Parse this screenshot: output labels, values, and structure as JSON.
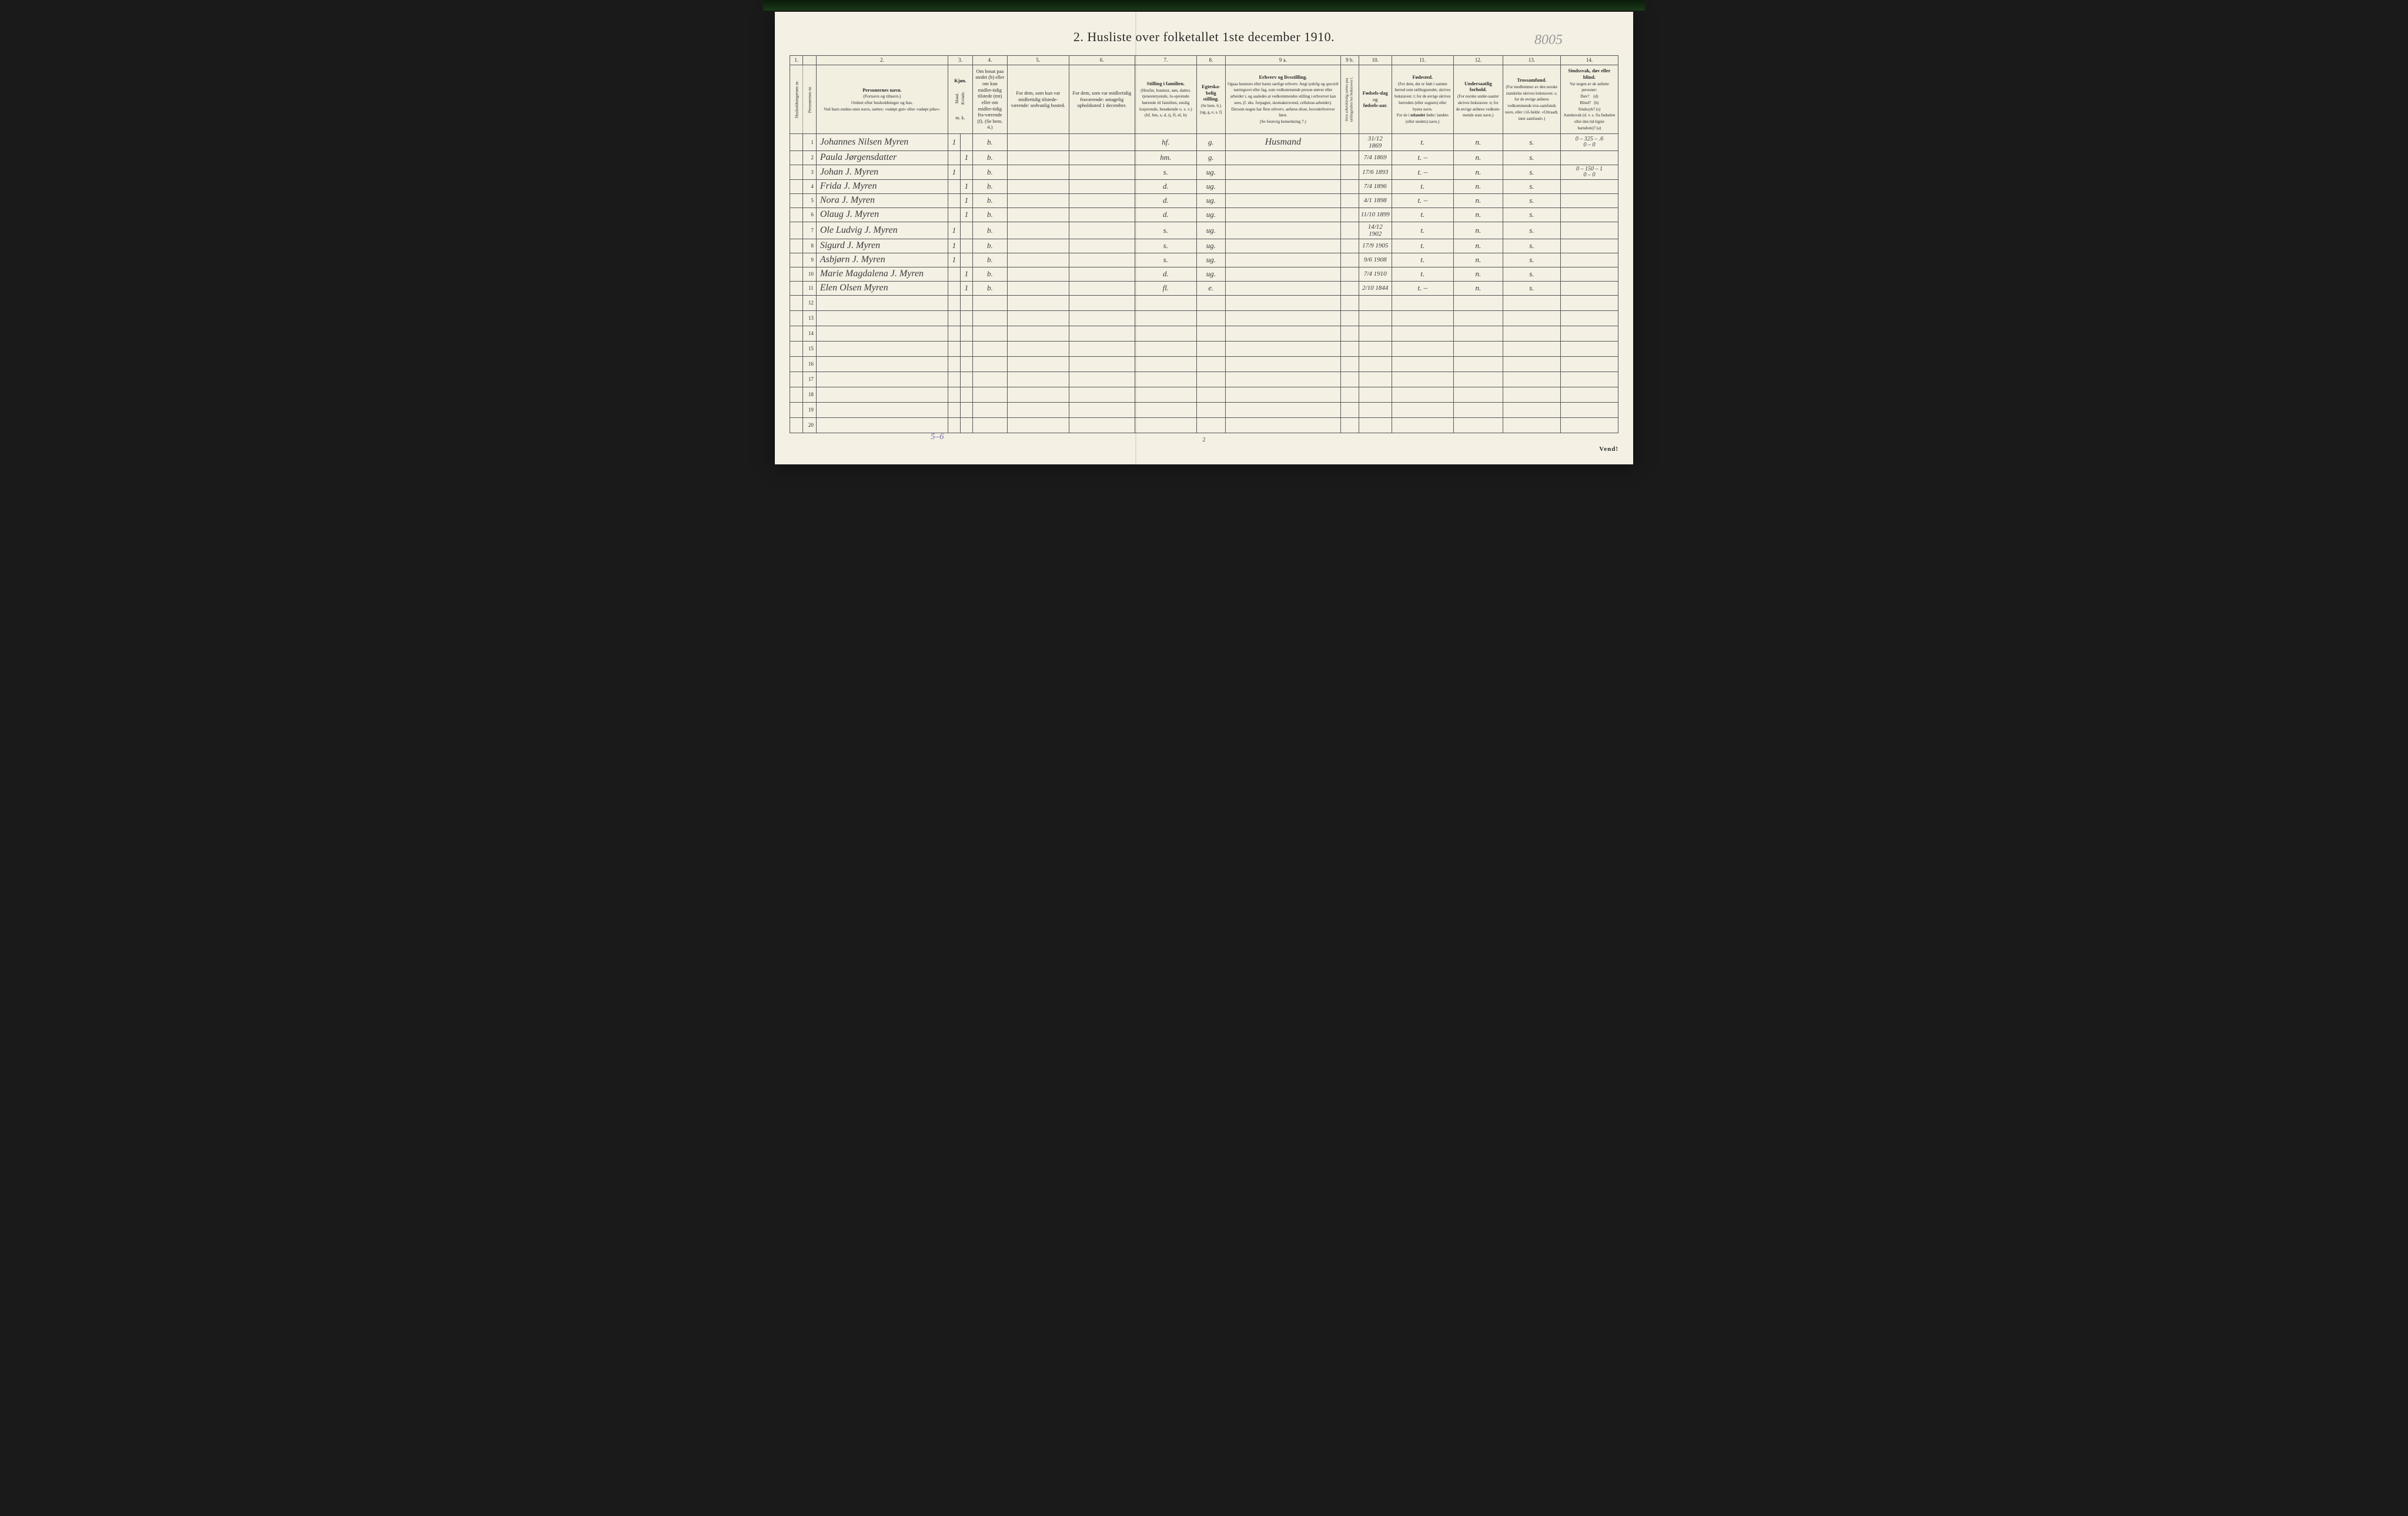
{
  "title": "2.  Husliste over folketallet 1ste december 1910.",
  "pencil_top_right": "8005",
  "footer_page_num": "2",
  "vend_text": "Vend!",
  "pencil_tally": "5–6",
  "colnums": [
    "1.",
    "",
    "2.",
    "3.",
    "",
    "4.",
    "5.",
    "6.",
    "7.",
    "8.",
    "9 a.",
    "9 b.",
    "10.",
    "11.",
    "12.",
    "13.",
    "14."
  ],
  "headers": {
    "c1": "Husholdningernes nr.",
    "c1b": "Personernes nr.",
    "c2": "Personernes navn.\n(Fornavn og tilnavn.)\nOrdnet efter husholdninger og hus.\nVed barn endnu uten navn, sættes: «udøpt gut» eller «udøpt pike».",
    "c3": "Kjøn.",
    "c3m": "Mand.",
    "c3k": "Kvinde.",
    "c3sub": "m.  k.",
    "c4": "Om bosat paa stedet (b) eller om kun midler-tidig tilstede (mt) eller om midler-tidig fra-værende (f).\n(Se bem. 4.)",
    "c5": "For dem, som kun var midlertidig tilstede-værende:\nsedvanlig bosted.",
    "c6": "For dem, som var midlertidig fraværende:\nantagelig opholdssted 1 december.",
    "c7": "Stilling i familien.\n(Husfar, husmor, søn, datter, tjenestetyende, lo-sjerende hørende til familien, enslig losjerende, besøkende o. s. v.)\n(hf, hm, s, d, tj, fl, el, b)",
    "c8": "Egteska-belig stilling.\n(Se bem. 6.)\n(ug, g, e, s, f)",
    "c9a": "Erhverv og livsstilling.\nOgsaa husmors eller barns særlige erhverv.\nAngi tydelig og specielt næringsvei eller fag, som vedkommende person utøver eller arbeider i, og saaledes at vedkommendes stilling i erhvervet kan sees, (f. eks. forpagter, skomakersvend, cellulose-arbeider). Dersom nogen har flere erhverv, anføres disse, hovederhvervet først.\n(Se forøvrig bemerkning 7.)",
    "c9b": "Hvis arbeidsledig sættes paa tællingstiden her bokstaven l.",
    "c10": "Fødsels-dag og fødsels-aar.",
    "c11": "Fødested.\n(For dem, der er født i samme herred som tællingsstedet, skrives bokstaven: t; for de øvrige skrives herredets (eller sognets) eller byens navn.\nFor de i utlandet fødte: landets (eller stedets) navn.)",
    "c12": "Undersaatlig forhold.\n(For norske under-saatter skrives bokstaven: n; for de øvrige anføres vedkom-mende stats navn.)",
    "c13": "Trossamfund.\n(For medlemmer av den norske statskirke skrives bokstaven: s; for de øvrige anføres vedkommende tros-samfunds navn, eller i til-fælde: «Uttraadt, intet samfund».)",
    "c14": "Sindssvak, døv eller blind.\nVar nogen av de anførte personer:\nDøv?       (d)\nBlind?      (b)\nSindssyk? (s)\nAandssvak (d. v. s. fra fødselen eller den tid-ligste barndom)?  (a)"
  },
  "rows": [
    {
      "n": "1",
      "name": "Johannes Nilsen Myren",
      "m": "1",
      "k": "",
      "b": "b.",
      "c7": "hf.",
      "c8": "g.",
      "c9": "Husmand",
      "c10": "31/12 1869",
      "c11": "t.",
      "c12": "n.",
      "c13": "s.",
      "c14": "0 – 325 – .6\n0 – 0"
    },
    {
      "n": "2",
      "name": "Paula Jørgensdatter",
      "m": "",
      "k": "1",
      "b": "b.",
      "c7": "hm.",
      "c8": "g.",
      "c9": "",
      "c10": "7/4 1869",
      "c11": "t.  –",
      "c12": "n.",
      "c13": "s.",
      "c14": ""
    },
    {
      "n": "3",
      "name": "Johan J. Myren",
      "m": "1",
      "k": "",
      "b": "b.",
      "c7": "s.",
      "c8": "ug.",
      "c9": "",
      "c10": "17/6 1893",
      "c11": "t.  –",
      "c12": "n.",
      "c13": "s.",
      "c14": "0 – 150 – 1\n0 – 0"
    },
    {
      "n": "4",
      "name": "Frida J. Myren",
      "m": "",
      "k": "1",
      "b": "b.",
      "c7": "d.",
      "c8": "ug.",
      "c9": "",
      "c10": "7/4 1896",
      "c11": "t.",
      "c12": "n.",
      "c13": "s.",
      "c14": ""
    },
    {
      "n": "5",
      "name": "Nora J. Myren",
      "m": "",
      "k": "1",
      "b": "b.",
      "c7": "d.",
      "c8": "ug.",
      "c9": "",
      "c10": "4/1 1898",
      "c11": "t.  –",
      "c12": "n.",
      "c13": "s.",
      "c14": ""
    },
    {
      "n": "6",
      "name": "Olaug J. Myren",
      "m": "",
      "k": "1",
      "b": "b.",
      "c7": "d.",
      "c8": "ug.",
      "c9": "",
      "c10": "11/10 1899",
      "c11": "t.",
      "c12": "n.",
      "c13": "s.",
      "c14": ""
    },
    {
      "n": "7",
      "name": "Ole Ludvig J. Myren",
      "m": "1",
      "k": "",
      "b": "b.",
      "c7": "s.",
      "c8": "ug.",
      "c9": "",
      "c10": "14/12 1902",
      "c11": "t.",
      "c12": "n.",
      "c13": "s.",
      "c14": ""
    },
    {
      "n": "8",
      "name": "Sigurd J. Myren",
      "m": "1",
      "k": "",
      "b": "b.",
      "c7": "s.",
      "c8": "ug.",
      "c9": "",
      "c10": "17/9 1905",
      "c11": "t.",
      "c12": "n.",
      "c13": "s.",
      "c14": ""
    },
    {
      "n": "9",
      "name": "Asbjørn J. Myren",
      "m": "1",
      "k": "",
      "b": "b.",
      "c7": "s.",
      "c8": "ug.",
      "c9": "",
      "c10": "9/6 1908",
      "c11": "t.",
      "c12": "n.",
      "c13": "s.",
      "c14": ""
    },
    {
      "n": "10",
      "name": "Marie Magdalena J. Myren",
      "m": "",
      "k": "1",
      "b": "b.",
      "c7": "d.",
      "c8": "ug.",
      "c9": "",
      "c10": "7/4 1910",
      "c11": "t.",
      "c12": "n.",
      "c13": "s.",
      "c14": ""
    },
    {
      "n": "11",
      "name": "Elen Olsen Myren",
      "m": "",
      "k": "1",
      "b": "b.",
      "c7": "fl.",
      "c8": "e.",
      "c9": "",
      "c10": "2/10 1844",
      "c11": "t.  –",
      "c12": "n.",
      "c13": "s.",
      "c14": ""
    }
  ],
  "empty_rows": [
    "12",
    "13",
    "14",
    "15",
    "16",
    "17",
    "18",
    "19",
    "20"
  ]
}
